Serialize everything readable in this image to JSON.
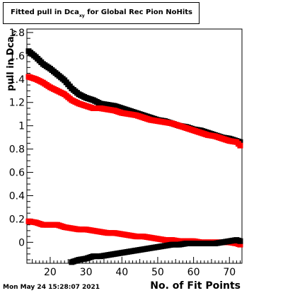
{
  "title": {
    "main": "Fitted pull in Dca",
    "subscript": "xy",
    "rest": " for Global Rec Pion NoHits"
  },
  "axis": {
    "ylabel_main": "pull in Dca",
    "ylabel_sub": "xy",
    "xlabel": "No. of Fit Points"
  },
  "timestamp": "Mon May 24 15:28:07 2021",
  "chart_data": {
    "type": "scatter",
    "xlim": [
      13.5,
      73.5
    ],
    "ylim": [
      -0.18,
      1.83
    ],
    "x_ticks": [
      20,
      30,
      40,
      50,
      60,
      70
    ],
    "y_ticks": [
      0,
      0.2,
      0.4,
      0.6,
      0.8,
      1,
      1.2,
      1.4,
      1.6,
      1.8
    ],
    "x_tick_labels": [
      "20",
      "30",
      "40",
      "50",
      "60",
      "70"
    ],
    "y_tick_labels": [
      "0",
      "0.2",
      "0.4",
      "0.6",
      "0.8",
      "1",
      "1.2",
      "1.4",
      "1.6",
      "1.8"
    ],
    "grid": false,
    "series": [
      {
        "color": "#000000",
        "x": [
          14,
          16,
          18,
          20,
          22,
          24,
          26,
          28,
          30,
          32,
          34,
          36,
          38,
          40,
          42,
          44,
          46,
          48,
          50,
          52,
          54,
          56,
          58,
          60,
          62,
          64,
          66,
          68,
          70,
          72,
          73
        ],
        "y": [
          1.64,
          1.59,
          1.53,
          1.49,
          1.44,
          1.39,
          1.32,
          1.27,
          1.24,
          1.22,
          1.19,
          1.18,
          1.17,
          1.15,
          1.13,
          1.11,
          1.09,
          1.07,
          1.05,
          1.04,
          1.02,
          1.0,
          0.99,
          0.97,
          0.96,
          0.94,
          0.92,
          0.9,
          0.89,
          0.87,
          0.86
        ]
      },
      {
        "color": "#ff0000",
        "x": [
          14,
          16,
          18,
          20,
          22,
          24,
          26,
          28,
          30,
          32,
          34,
          36,
          38,
          40,
          42,
          44,
          46,
          48,
          50,
          52,
          54,
          56,
          58,
          60,
          62,
          64,
          66,
          68,
          70,
          72,
          73
        ],
        "y": [
          1.42,
          1.4,
          1.37,
          1.33,
          1.3,
          1.27,
          1.22,
          1.19,
          1.17,
          1.15,
          1.15,
          1.14,
          1.13,
          1.11,
          1.1,
          1.09,
          1.07,
          1.05,
          1.04,
          1.03,
          1.02,
          1.0,
          0.98,
          0.96,
          0.94,
          0.92,
          0.91,
          0.89,
          0.87,
          0.86,
          0.83
        ]
      },
      {
        "color": "#ff0000",
        "x": [
          14,
          16,
          18,
          20,
          22,
          24,
          26,
          28,
          30,
          32,
          34,
          36,
          38,
          40,
          42,
          44,
          46,
          48,
          50,
          52,
          54,
          56,
          58,
          60,
          62,
          64,
          66,
          68,
          70,
          72,
          73
        ],
        "y": [
          0.18,
          0.17,
          0.15,
          0.15,
          0.15,
          0.13,
          0.12,
          0.11,
          0.11,
          0.1,
          0.09,
          0.08,
          0.08,
          0.07,
          0.06,
          0.05,
          0.05,
          0.04,
          0.03,
          0.02,
          0.02,
          0.01,
          0.01,
          0.01,
          0.0,
          0.0,
          0.0,
          0.0,
          0.0,
          -0.01,
          -0.02
        ]
      },
      {
        "color": "#000000",
        "x": [
          26,
          28,
          30,
          32,
          34,
          36,
          38,
          40,
          42,
          44,
          46,
          48,
          50,
          52,
          54,
          56,
          58,
          60,
          62,
          64,
          66,
          68,
          70,
          72,
          73
        ],
        "y": [
          -0.17,
          -0.15,
          -0.14,
          -0.12,
          -0.12,
          -0.11,
          -0.1,
          -0.09,
          -0.08,
          -0.07,
          -0.06,
          -0.05,
          -0.04,
          -0.03,
          -0.02,
          -0.02,
          -0.01,
          -0.01,
          -0.01,
          -0.01,
          -0.01,
          0.0,
          0.01,
          0.02,
          0.01
        ]
      }
    ]
  }
}
